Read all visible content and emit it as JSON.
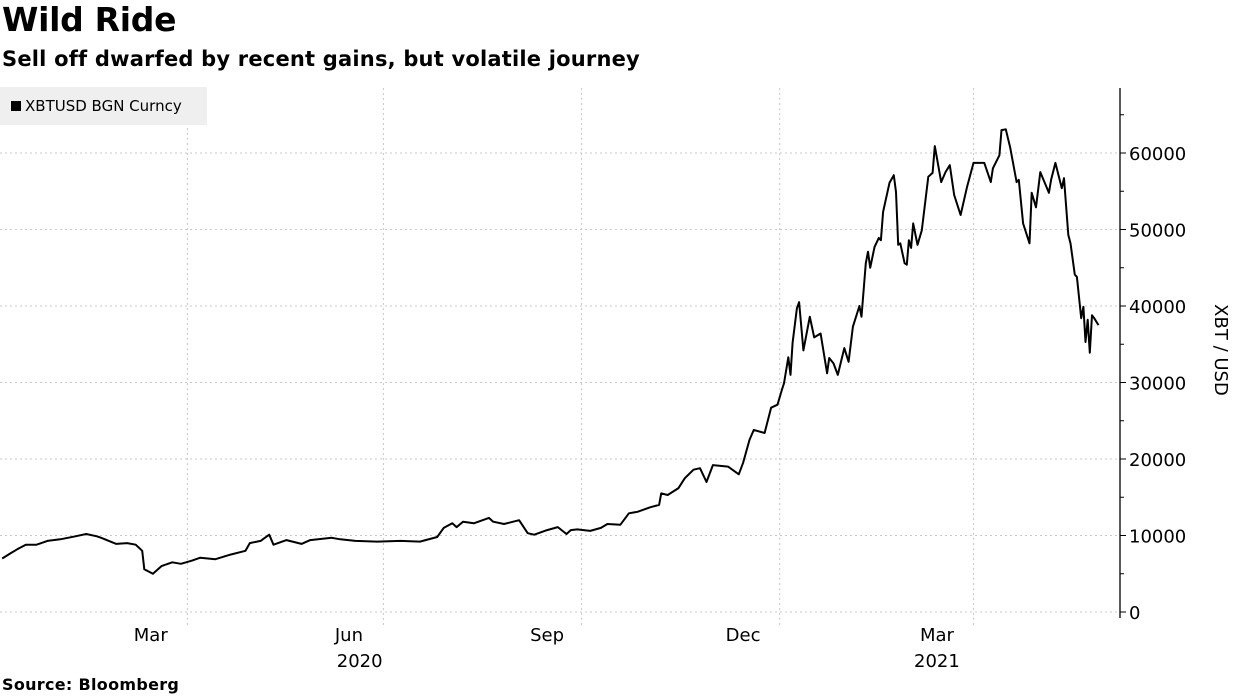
{
  "title": "Wild Ride",
  "subtitle": "Sell off dwarfed by recent gains, but volatile journey",
  "source": "Source: Bloomberg",
  "chart_data": {
    "type": "line",
    "title": "Wild Ride",
    "subtitle": "Sell off dwarfed by recent gains, but volatile journey",
    "xlabel": "",
    "ylabel": "XBT / USD",
    "legend": "top-left",
    "grid": true,
    "line_color": "#000000",
    "grid_color": "#c8c8c8",
    "xlim": [
      "2020-01-05",
      "2021-06-08"
    ],
    "ylim": [
      0,
      68500
    ],
    "y_ticks": [
      0,
      10000,
      20000,
      30000,
      40000,
      50000,
      60000
    ],
    "y_tick_labels": [
      "0",
      "10000",
      "20000",
      "30000",
      "40000",
      "50000",
      "60000"
    ],
    "x_gridlines": [
      "2020-04-01",
      "2020-07-01",
      "2020-10-01",
      "2021-01-01",
      "2021-04-01"
    ],
    "x_month_labels": [
      {
        "label": "Mar",
        "date": "2020-03-15"
      },
      {
        "label": "Jun",
        "date": "2020-06-15"
      },
      {
        "label": "Sep",
        "date": "2020-09-15"
      },
      {
        "label": "Dec",
        "date": "2020-12-15"
      },
      {
        "label": "Mar",
        "date": "2021-03-15"
      }
    ],
    "x_year_labels": [
      {
        "label": "2020",
        "date": "2020-06-20"
      },
      {
        "label": "2021",
        "date": "2021-03-15"
      }
    ],
    "series": [
      {
        "name": "XBTUSD BGN Curncy",
        "x": [
          "2020-01-06",
          "2020-01-10",
          "2020-01-13",
          "2020-01-17",
          "2020-01-22",
          "2020-01-27",
          "2020-02-02",
          "2020-02-09",
          "2020-02-14",
          "2020-02-19",
          "2020-02-21",
          "2020-02-28",
          "2020-03-04",
          "2020-03-08",
          "2020-03-11",
          "2020-03-12",
          "2020-03-16",
          "2020-03-20",
          "2020-03-25",
          "2020-03-29",
          "2020-04-03",
          "2020-04-07",
          "2020-04-14",
          "2020-04-21",
          "2020-04-28",
          "2020-04-30",
          "2020-05-05",
          "2020-05-09",
          "2020-05-11",
          "2020-05-17",
          "2020-05-24",
          "2020-05-28",
          "2020-06-07",
          "2020-06-11",
          "2020-06-18",
          "2020-06-28",
          "2020-07-09",
          "2020-07-18",
          "2020-07-26",
          "2020-07-29",
          "2020-08-02",
          "2020-08-04",
          "2020-08-07",
          "2020-08-12",
          "2020-08-19",
          "2020-08-21",
          "2020-08-26",
          "2020-09-02",
          "2020-09-06",
          "2020-09-09",
          "2020-09-15",
          "2020-09-20",
          "2020-09-24",
          "2020-09-26",
          "2020-09-29",
          "2020-10-05",
          "2020-10-10",
          "2020-10-13",
          "2020-10-19",
          "2020-10-23",
          "2020-10-27",
          "2020-11-02",
          "2020-11-06",
          "2020-11-07",
          "2020-11-10",
          "2020-11-15",
          "2020-11-18",
          "2020-11-22",
          "2020-11-25",
          "2020-11-28",
          "2020-12-01",
          "2020-12-08",
          "2020-12-13",
          "2020-12-15",
          "2020-12-18",
          "2020-12-20",
          "2020-12-25",
          "2020-12-28",
          "2020-12-31",
          "2021-01-02",
          "2021-01-03",
          "2021-01-05",
          "2021-01-06",
          "2021-01-07",
          "2021-01-09",
          "2021-01-10",
          "2021-01-12",
          "2021-01-15",
          "2021-01-17",
          "2021-01-20",
          "2021-01-23",
          "2021-01-24",
          "2021-01-26",
          "2021-01-28",
          "2021-01-31",
          "2021-02-02",
          "2021-02-04",
          "2021-02-07",
          "2021-02-08",
          "2021-02-10",
          "2021-02-11",
          "2021-02-12",
          "2021-02-14",
          "2021-02-16",
          "2021-02-17",
          "2021-02-18",
          "2021-02-21",
          "2021-02-23",
          "2021-02-24",
          "2021-02-25",
          "2021-02-26",
          "2021-02-28",
          "2021-03-01",
          "2021-03-02",
          "2021-03-03",
          "2021-03-04",
          "2021-03-06",
          "2021-03-08",
          "2021-03-11",
          "2021-03-13",
          "2021-03-14",
          "2021-03-17",
          "2021-03-19",
          "2021-03-21",
          "2021-03-23",
          "2021-03-26",
          "2021-03-29",
          "2021-04-01",
          "2021-04-06",
          "2021-04-09",
          "2021-04-10",
          "2021-04-13",
          "2021-04-14",
          "2021-04-16",
          "2021-04-18",
          "2021-04-21",
          "2021-04-22",
          "2021-04-24",
          "2021-04-27",
          "2021-04-28",
          "2021-04-30",
          "2021-05-02",
          "2021-05-06",
          "2021-05-07",
          "2021-05-09",
          "2021-05-12",
          "2021-05-13",
          "2021-05-15",
          "2021-05-16",
          "2021-05-18",
          "2021-05-19",
          "2021-05-21",
          "2021-05-22",
          "2021-05-23",
          "2021-05-24",
          "2021-05-25",
          "2021-05-26",
          "2021-05-27",
          "2021-05-29"
        ],
        "y": [
          7000,
          7700,
          8200,
          8800,
          8800,
          9300,
          9500,
          9900,
          10200,
          9900,
          9700,
          8900,
          9000,
          8800,
          8000,
          5600,
          5000,
          6000,
          6500,
          6300,
          6700,
          7100,
          6900,
          7500,
          8000,
          9000,
          9300,
          10100,
          8800,
          9400,
          8900,
          9400,
          9700,
          9500,
          9300,
          9200,
          9300,
          9200,
          9800,
          11000,
          11600,
          11100,
          11800,
          11600,
          12300,
          11800,
          11500,
          12000,
          10300,
          10100,
          10700,
          11100,
          10200,
          10700,
          10800,
          10600,
          11000,
          11500,
          11400,
          12900,
          13100,
          13700,
          14000,
          15500,
          15300,
          16200,
          17500,
          18600,
          18800,
          17000,
          19200,
          19000,
          18000,
          19500,
          22500,
          23800,
          23400,
          26700,
          27100,
          29000,
          29900,
          33300,
          31000,
          35200,
          39700,
          40500,
          34200,
          38600,
          35900,
          36400,
          31200,
          33200,
          32500,
          31000,
          34500,
          32700,
          37300,
          40000,
          38600,
          45600,
          47100,
          45000,
          47700,
          48900,
          48600,
          52300,
          56100,
          57100,
          54900,
          48000,
          48200,
          45600,
          45400,
          48600,
          47600,
          50800,
          48000,
          49900,
          56900,
          57400,
          60900,
          56200,
          57500,
          58400,
          54500,
          51900,
          55600,
          58700,
          58700,
          56200,
          58000,
          59700,
          63000,
          63100,
          60700,
          56200,
          56500,
          50800,
          48200,
          54800,
          52900,
          57500,
          54800,
          56500,
          58700,
          55400,
          56700,
          49300,
          48200,
          44100,
          43800,
          38400,
          39900,
          35300,
          38200,
          33900,
          38800,
          38400,
          37500
        ]
      }
    ]
  }
}
